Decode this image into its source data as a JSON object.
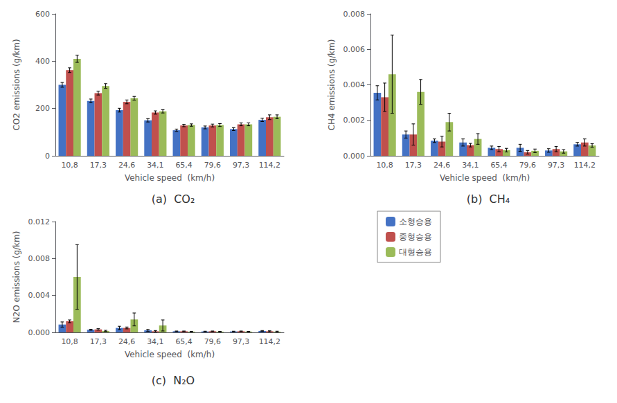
{
  "chart_data": [
    {
      "type": "bar",
      "title": "(a)  CO₂",
      "xlabel": "Vehicle speed  (km/h)",
      "ylabel": "CO2 emissions (g/km)",
      "categories": [
        "10,8",
        "17,3",
        "24,6",
        "34,1",
        "65,4",
        "79,6",
        "97,3",
        "114,2"
      ],
      "series": [
        {
          "name": "소형승용",
          "color": "#4472C4",
          "values": [
            300,
            232,
            193,
            150,
            108,
            120,
            113,
            152
          ],
          "errors": [
            10,
            8,
            8,
            7,
            5,
            6,
            6,
            7
          ]
        },
        {
          "name": "중형승용",
          "color": "#C0504D",
          "values": [
            362,
            265,
            228,
            183,
            128,
            128,
            133,
            163
          ],
          "errors": [
            10,
            8,
            8,
            7,
            5,
            6,
            6,
            10
          ]
        },
        {
          "name": "대형승용",
          "color": "#9BBB59",
          "values": [
            410,
            295,
            243,
            188,
            130,
            130,
            133,
            165
          ],
          "errors": [
            15,
            10,
            8,
            7,
            5,
            6,
            6,
            8
          ]
        }
      ],
      "ylim": [
        0,
        600
      ],
      "yticks": [
        0,
        200,
        400,
        600
      ],
      "grid": false
    },
    {
      "type": "bar",
      "title": "(b)  CH₄",
      "xlabel": "Vehicle speed  (km/h)",
      "ylabel": "CH4 emissions (g/km)",
      "categories": [
        "10,8",
        "17,3",
        "24,6",
        "34,1",
        "65,4",
        "79,6",
        "97,3",
        "114,2"
      ],
      "series": [
        {
          "name": "소형승용",
          "color": "#4472C4",
          "values": [
            0.00355,
            0.0012,
            0.00085,
            0.00075,
            0.00045,
            0.00045,
            0.0003,
            0.00065
          ],
          "errors": [
            0.0004,
            0.0002,
            0.0001,
            0.0002,
            0.0001,
            0.0002,
            0.0001,
            0.0001
          ]
        },
        {
          "name": "중형승용",
          "color": "#C0504D",
          "values": [
            0.0033,
            0.0012,
            0.0008,
            0.0006,
            0.00038,
            0.0002,
            0.00038,
            0.00075
          ],
          "errors": [
            0.0008,
            0.0006,
            0.0003,
            0.0001,
            0.00015,
            0.0001,
            0.00015,
            0.0002
          ]
        },
        {
          "name": "대형승용",
          "color": "#9BBB59",
          "values": [
            0.0046,
            0.0036,
            0.0019,
            0.00095,
            0.00032,
            0.00028,
            0.00025,
            0.00058
          ],
          "errors": [
            0.0022,
            0.0007,
            0.0005,
            0.0003,
            0.0001,
            0.0001,
            0.0001,
            0.0001
          ]
        }
      ],
      "ylim": [
        0,
        0.008
      ],
      "yticks": [
        {
          "value": 0,
          "label": "0.000"
        },
        {
          "value": 0.002,
          "label": "0.002"
        },
        {
          "value": 0.004,
          "label": "0.004"
        },
        {
          "value": 0.006,
          "label": "0.006"
        },
        {
          "value": 0.008,
          "label": "0.008"
        }
      ],
      "grid": false
    },
    {
      "type": "bar",
      "title": "(c)  N₂O",
      "xlabel": "Vehicle speed  (km/h)",
      "ylabel": "N2O emissions (g/km)",
      "categories": [
        "10,8",
        "17,3",
        "24,6",
        "34,1",
        "65,4",
        "79,6",
        "97,3",
        "114,2"
      ],
      "series": [
        {
          "name": "소형승용",
          "color": "#4472C4",
          "values": [
            0.00085,
            0.00028,
            0.00048,
            0.00022,
            0.00012,
            0.0001,
            0.0001,
            0.00015
          ],
          "errors": [
            0.00028,
            5e-05,
            0.00018,
            0.0001,
            3e-05,
            3e-05,
            3e-05,
            5e-05
          ]
        },
        {
          "name": "중형승용",
          "color": "#C0504D",
          "values": [
            0.0012,
            0.00032,
            0.00048,
            0.00012,
            0.00012,
            0.00012,
            0.00012,
            0.00012
          ],
          "errors": [
            0.00015,
            8e-05,
            0.0001,
            8e-05,
            3e-05,
            3e-05,
            3e-05,
            5e-05
          ]
        },
        {
          "name": "대형승용",
          "color": "#9BBB59",
          "values": [
            0.006,
            0.00016,
            0.0014,
            0.00075,
            8e-05,
            8e-05,
            8e-05,
            8e-05
          ],
          "errors": [
            0.0035,
            6e-05,
            0.0007,
            0.0006,
            3e-05,
            3e-05,
            3e-05,
            5e-05
          ]
        }
      ],
      "ylim": [
        0,
        0.012
      ],
      "yticks": [
        {
          "value": 0,
          "label": "0.000"
        },
        {
          "value": 0.004,
          "label": "0.004"
        },
        {
          "value": 0.008,
          "label": "0.008"
        },
        {
          "value": 0.012,
          "label": "0.012"
        }
      ],
      "grid": false,
      "legend": "lower right"
    }
  ]
}
